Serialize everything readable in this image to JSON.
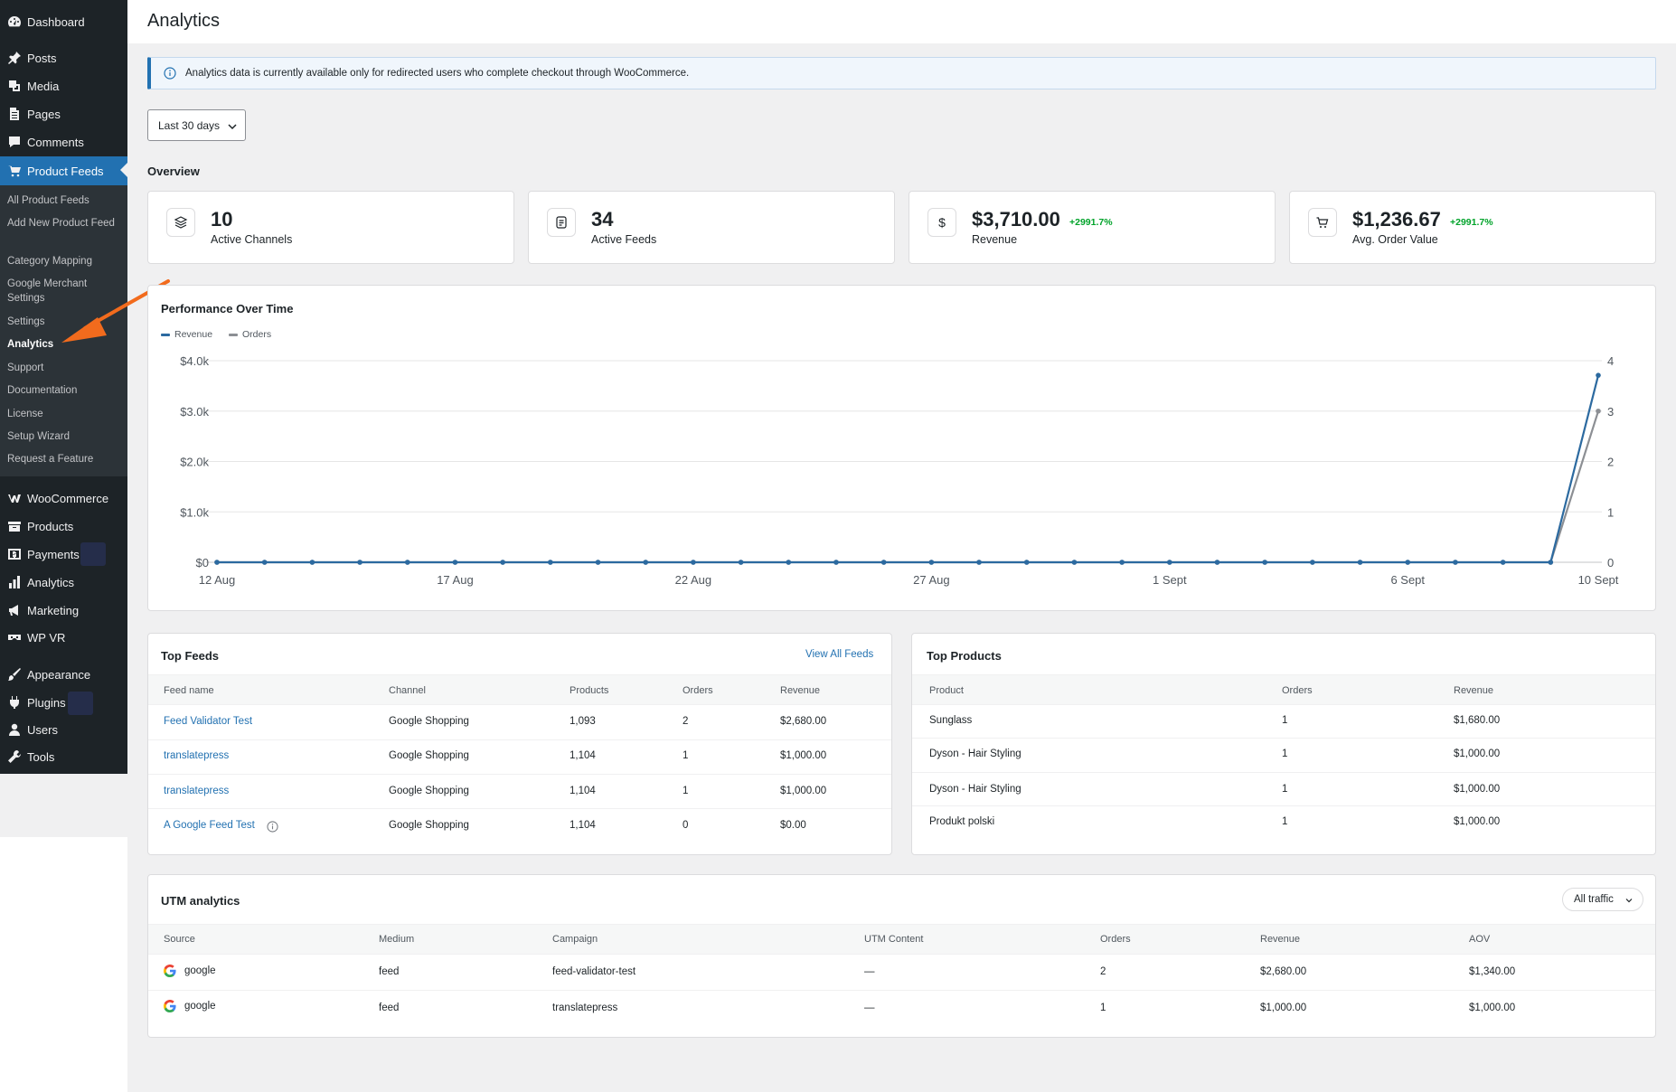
{
  "sidebar": {
    "top_items": [
      {
        "label": "Dashboard",
        "icon": "dashboard-icon"
      },
      {
        "label": "Posts",
        "icon": "pin-icon"
      },
      {
        "label": "Media",
        "icon": "media-icon"
      },
      {
        "label": "Pages",
        "icon": "pages-icon"
      },
      {
        "label": "Comments",
        "icon": "comment-icon"
      },
      {
        "label": "Product Feeds",
        "icon": "cart-icon"
      }
    ],
    "submenu": [
      "All Product Feeds",
      "Add New Product Feed",
      "Category Mapping",
      "Google Merchant Settings",
      "Settings",
      "Analytics",
      "Support",
      "Documentation",
      "License",
      "Setup Wizard",
      "Request a Feature"
    ],
    "bottom_items": [
      {
        "label": "WooCommerce",
        "icon": "woo-icon"
      },
      {
        "label": "Products",
        "icon": "box-icon"
      },
      {
        "label": "Payments",
        "icon": "dollar-icon"
      },
      {
        "label": "Analytics",
        "icon": "bar-chart-icon"
      },
      {
        "label": "Marketing",
        "icon": "megaphone-icon"
      },
      {
        "label": "WP VR",
        "icon": "vr-icon"
      },
      {
        "label": "Appearance",
        "icon": "brush-icon"
      },
      {
        "label": "Plugins",
        "icon": "plugin-icon"
      },
      {
        "label": "Users",
        "icon": "user-icon"
      },
      {
        "label": "Tools",
        "icon": "wrench-icon"
      }
    ]
  },
  "page": {
    "title": "Analytics",
    "notice": "Analytics data is currently available only for redirected users who complete checkout through WooCommerce.",
    "date_range": "Last 30 days",
    "overview_label": "Overview"
  },
  "stats": [
    {
      "value": "10",
      "label": "Active Channels",
      "change": ""
    },
    {
      "value": "34",
      "label": "Active Feeds",
      "change": ""
    },
    {
      "value": "$3,710.00",
      "label": "Revenue",
      "change": "+2991.7%"
    },
    {
      "value": "$1,236.67",
      "label": "Avg. Order Value",
      "change": "+2991.7%"
    }
  ],
  "chart": {
    "title": "Performance Over Time",
    "colors": {
      "revenue": "#2c6aa0",
      "orders": "#8c8f94"
    }
  },
  "chart_data": {
    "type": "line",
    "x": [
      "12 Aug",
      "13 Aug",
      "14 Aug",
      "15 Aug",
      "16 Aug",
      "17 Aug",
      "18 Aug",
      "19 Aug",
      "20 Aug",
      "21 Aug",
      "22 Aug",
      "23 Aug",
      "24 Aug",
      "25 Aug",
      "26 Aug",
      "27 Aug",
      "28 Aug",
      "29 Aug",
      "30 Aug",
      "31 Aug",
      "1 Sept",
      "2 Sept",
      "3 Sept",
      "4 Sept",
      "5 Sept",
      "6 Sept",
      "7 Sept",
      "8 Sept",
      "9 Sept",
      "10 Sept"
    ],
    "x_tick_labels": [
      "12 Aug",
      "17 Aug",
      "22 Aug",
      "27 Aug",
      "1 Sept",
      "6 Sept",
      "10 Sept"
    ],
    "series": [
      {
        "name": "Revenue",
        "axis": "left",
        "values": [
          0,
          0,
          0,
          0,
          0,
          0,
          0,
          0,
          0,
          0,
          0,
          0,
          0,
          0,
          0,
          0,
          0,
          0,
          0,
          0,
          0,
          0,
          0,
          0,
          0,
          0,
          0,
          0,
          0,
          3710
        ]
      },
      {
        "name": "Orders",
        "axis": "right",
        "values": [
          0,
          0,
          0,
          0,
          0,
          0,
          0,
          0,
          0,
          0,
          0,
          0,
          0,
          0,
          0,
          0,
          0,
          0,
          0,
          0,
          0,
          0,
          0,
          0,
          0,
          0,
          0,
          0,
          0,
          3
        ]
      }
    ],
    "y_left_ticks": [
      "$0",
      "$1.0k",
      "$2.0k",
      "$3.0k",
      "$4.0k"
    ],
    "y_right_ticks": [
      "0",
      "1",
      "2",
      "3",
      "4"
    ],
    "ylim_left": [
      0,
      4000
    ],
    "ylim_right": [
      0,
      4
    ],
    "legend_position": "top-left",
    "grid": true
  },
  "top_feeds": {
    "title": "Top Feeds",
    "view_all": "View All Feeds",
    "headers": [
      "Feed name",
      "Channel",
      "Products",
      "Orders",
      "Revenue"
    ],
    "rows": [
      [
        "Feed Validator Test",
        "Google Shopping",
        "1,093",
        "2",
        "$2,680.00"
      ],
      [
        "translatepress",
        "Google Shopping",
        "1,104",
        "1",
        "$1,000.00"
      ],
      [
        "translatepress",
        "Google Shopping",
        "1,104",
        "1",
        "$1,000.00"
      ],
      [
        "A Google Feed Test",
        "Google Shopping",
        "1,104",
        "0",
        "$0.00"
      ]
    ]
  },
  "top_products": {
    "title": "Top Products",
    "headers": [
      "Product",
      "Orders",
      "Revenue"
    ],
    "rows": [
      [
        "Sunglass",
        "1",
        "$1,680.00"
      ],
      [
        "Dyson - Hair Styling",
        "1",
        "$1,000.00"
      ],
      [
        "Dyson - Hair Styling",
        "1",
        "$1,000.00"
      ],
      [
        "Produkt polski",
        "1",
        "$1,000.00"
      ]
    ]
  },
  "utm": {
    "title": "UTM analytics",
    "filter": "All traffic",
    "headers": [
      "Source",
      "Medium",
      "Campaign",
      "UTM Content",
      "Orders",
      "Revenue",
      "AOV"
    ],
    "rows": [
      [
        "google",
        "feed",
        "feed-validator-test",
        "—",
        "2",
        "$2,680.00",
        "$1,340.00"
      ],
      [
        "google",
        "feed",
        "translatepress",
        "—",
        "1",
        "$1,000.00",
        "$1,000.00"
      ]
    ]
  }
}
